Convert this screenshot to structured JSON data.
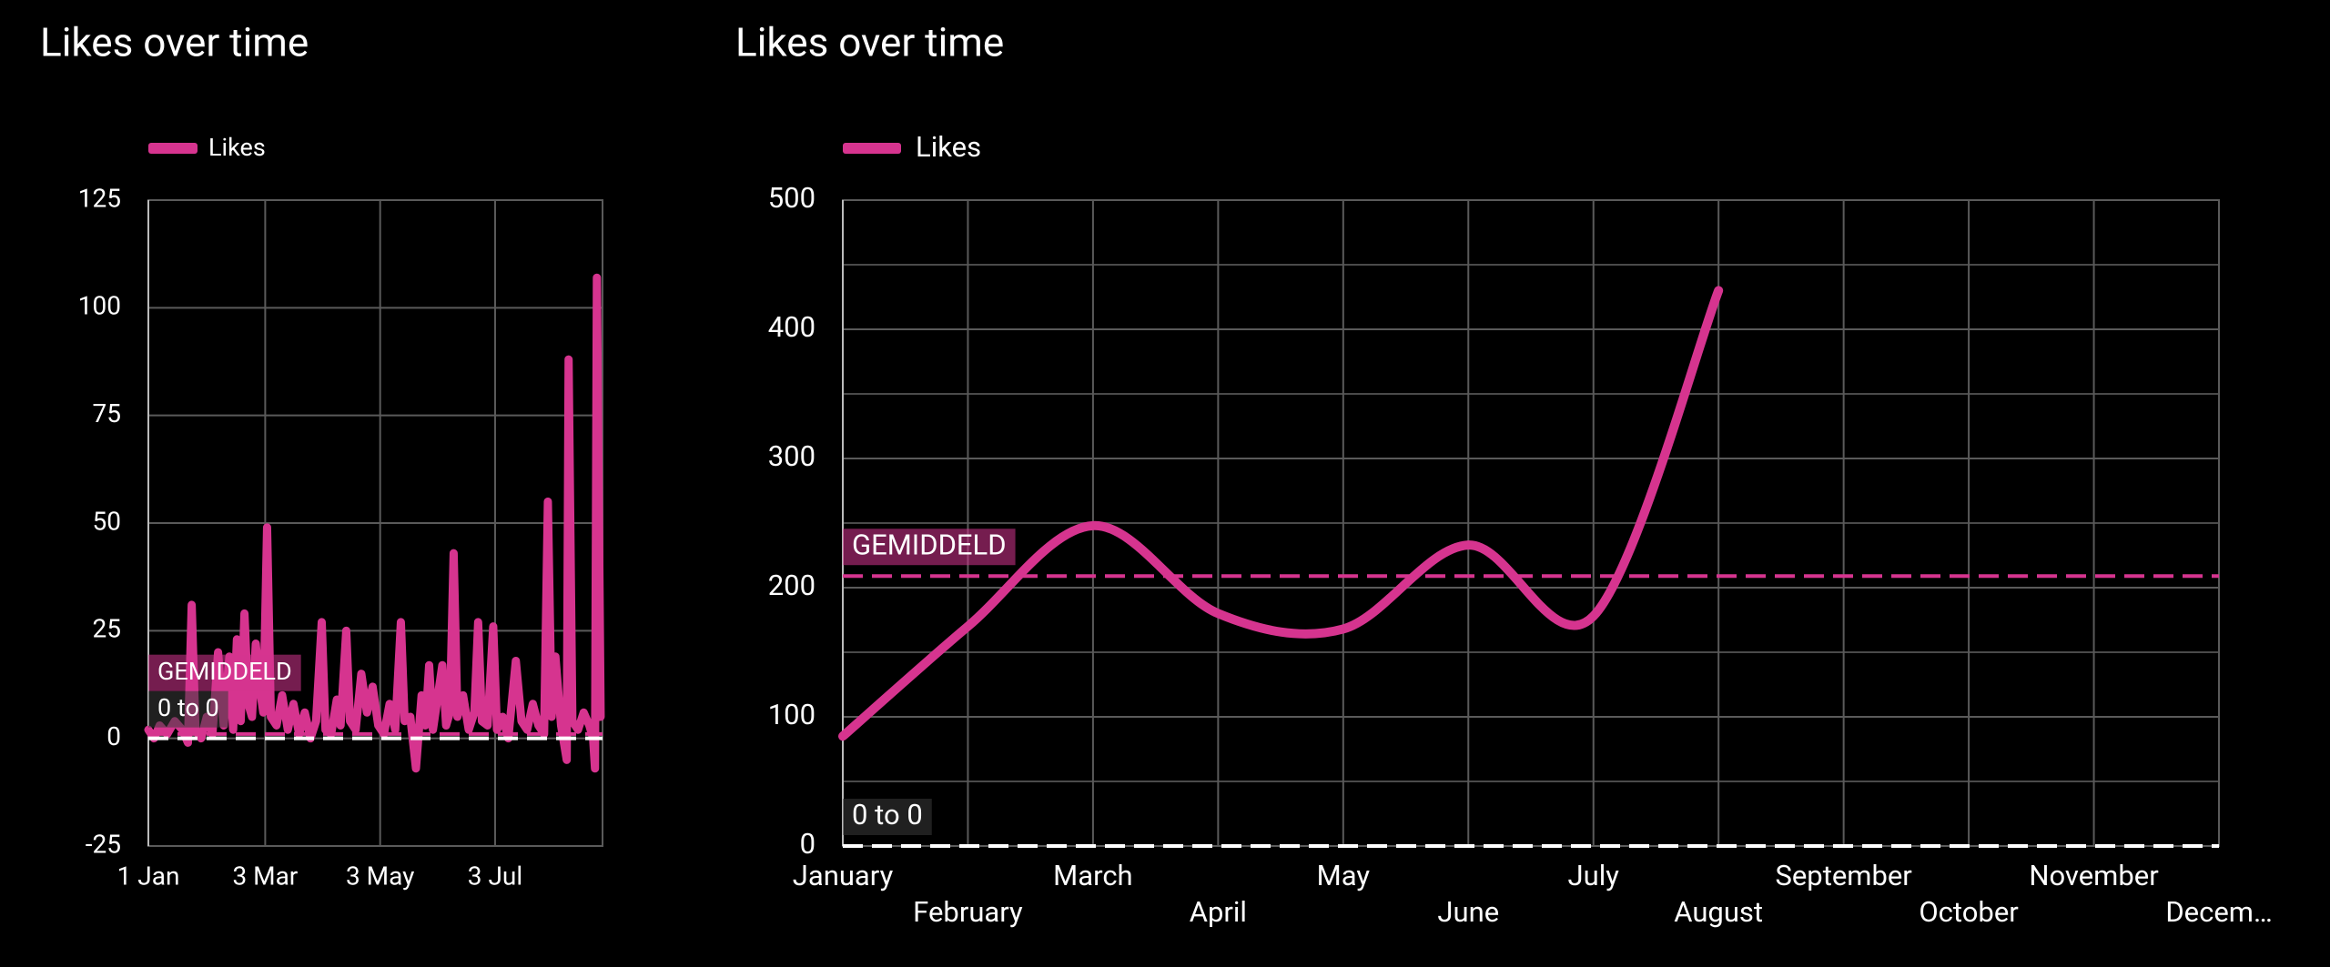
{
  "chart_data": [
    {
      "type": "line",
      "title": "Likes over time",
      "series": [
        {
          "name": "Likes",
          "color": "#d6348f",
          "x": [
            0,
            3,
            6,
            10,
            14,
            18,
            21,
            23,
            25,
            28,
            31,
            34,
            37,
            40,
            43,
            45,
            47,
            49,
            51,
            53,
            55,
            57,
            59,
            61,
            63,
            65,
            68,
            71,
            74,
            77,
            80,
            83,
            86,
            89,
            92,
            94,
            97,
            100,
            102,
            105,
            107,
            110,
            113,
            116,
            119,
            122,
            125,
            128,
            131,
            134,
            136,
            139,
            142,
            145,
            147,
            149,
            151,
            153,
            156,
            158,
            160,
            162,
            164,
            167,
            170,
            173,
            175,
            177,
            180,
            183,
            185,
            188,
            191,
            195,
            198,
            201,
            204,
            207,
            210,
            212,
            214,
            216,
            219,
            222,
            223,
            225,
            228,
            231,
            234,
            236,
            237,
            238,
            240
          ],
          "values": [
            2,
            0,
            3,
            1,
            4,
            2,
            -1,
            31,
            2,
            0,
            5,
            1,
            20,
            3,
            19,
            2,
            23,
            4,
            29,
            8,
            5,
            22,
            12,
            6,
            49,
            5,
            3,
            10,
            2,
            8,
            1,
            6,
            0,
            4,
            27,
            2,
            1,
            9,
            3,
            25,
            4,
            2,
            15,
            6,
            12,
            3,
            1,
            8,
            2,
            27,
            4,
            5,
            -7,
            10,
            3,
            17,
            2,
            8,
            17,
            3,
            6,
            43,
            5,
            10,
            2,
            6,
            27,
            4,
            3,
            26,
            2,
            5,
            0,
            18,
            4,
            2,
            8,
            3,
            1,
            55,
            5,
            19,
            3,
            -5,
            88,
            4,
            2,
            6,
            3,
            0,
            -7,
            107,
            5
          ]
        }
      ],
      "xlim": [
        0,
        241
      ],
      "xticks": [
        {
          "value": 0,
          "label": "1 Jan"
        },
        {
          "value": 62,
          "label": "3 Mar"
        },
        {
          "value": 123,
          "label": "3 May"
        },
        {
          "value": 184,
          "label": "3 Jul"
        }
      ],
      "ylim": [
        -25,
        125
      ],
      "yticks": [
        -25,
        0,
        25,
        50,
        75,
        100,
        125
      ],
      "reference_lines": [
        {
          "label": "GEMIDDELD",
          "value": 1,
          "color": "#d6348f"
        },
        {
          "label": "0 to 0",
          "value": 0,
          "color": "#ffffff"
        }
      ],
      "grid": true,
      "smooth": false
    },
    {
      "type": "line",
      "title": "Likes over time",
      "categories": [
        "January",
        "February",
        "March",
        "April",
        "May",
        "June",
        "July",
        "August",
        "September",
        "October",
        "November",
        "Decem…"
      ],
      "series": [
        {
          "name": "Likes",
          "color": "#d6348f",
          "values": [
            85,
            170,
            248,
            180,
            168,
            233,
            178,
            430,
            null,
            null,
            null,
            null
          ]
        }
      ],
      "ylim": [
        0,
        500
      ],
      "yticks": [
        0,
        100,
        200,
        300,
        400,
        500
      ],
      "reference_lines": [
        {
          "label": "GEMIDDELD",
          "value": 209,
          "color": "#d6348f"
        },
        {
          "label": "0 to 0",
          "value": 0,
          "color": "#ffffff"
        }
      ],
      "grid": true,
      "smooth": true
    }
  ]
}
